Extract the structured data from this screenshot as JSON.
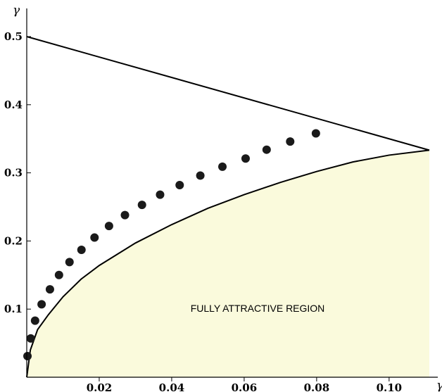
{
  "chart_data": {
    "type": "scatter",
    "title": "",
    "xlabel": "γ",
    "ylabel": "γ",
    "xlim": [
      0,
      0.1111
    ],
    "ylim": [
      0,
      0.5
    ],
    "x_ticks": [
      {
        "value": 0.02,
        "label": "0.02"
      },
      {
        "value": 0.04,
        "label": "0.04"
      },
      {
        "value": 0.06,
        "label": "0.06"
      },
      {
        "value": 0.08,
        "label": "0.08"
      },
      {
        "value": 0.1,
        "label": "0.10"
      }
    ],
    "y_ticks": [
      {
        "value": 0.1,
        "label": "0.1"
      },
      {
        "value": 0.2,
        "label": "0.2"
      },
      {
        "value": 0.3,
        "label": "0.3"
      },
      {
        "value": 0.4,
        "label": "0.4"
      },
      {
        "value": 0.5,
        "label": "0.5"
      }
    ],
    "upper_line": {
      "x": [
        0,
        0.1111
      ],
      "y": [
        0.5,
        0.3333
      ]
    },
    "lower_curve": {
      "x": [
        0,
        0.001,
        0.003,
        0.006,
        0.01,
        0.015,
        0.02,
        0.03,
        0.04,
        0.05,
        0.06,
        0.07,
        0.08,
        0.09,
        0.1,
        0.1111
      ],
      "y": [
        0,
        0.04,
        0.07,
        0.092,
        0.118,
        0.144,
        0.164,
        0.197,
        0.224,
        0.248,
        0.268,
        0.286,
        0.302,
        0.316,
        0.326,
        0.3333
      ]
    },
    "shaded_region_color": "#fafadc",
    "region_label": "FULLY ATTRACTIVE REGION",
    "points": {
      "x": [
        0.0002,
        0.0011,
        0.0023,
        0.0041,
        0.0064,
        0.0089,
        0.0118,
        0.0151,
        0.0187,
        0.0227,
        0.0271,
        0.0318,
        0.0368,
        0.0422,
        0.0479,
        0.054,
        0.0604,
        0.0662,
        0.0727,
        0.0798
      ],
      "y": [
        0.031,
        0.057,
        0.083,
        0.107,
        0.129,
        0.15,
        0.169,
        0.187,
        0.205,
        0.222,
        0.238,
        0.253,
        0.268,
        0.282,
        0.296,
        0.309,
        0.321,
        0.334,
        0.346,
        0.358
      ]
    }
  }
}
